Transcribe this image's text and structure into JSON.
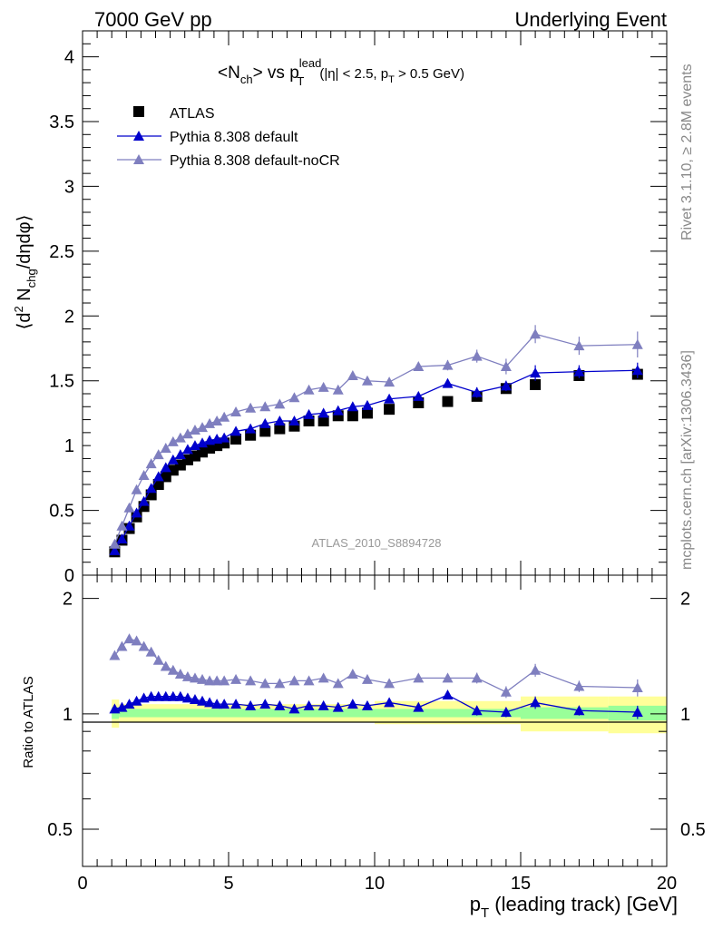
{
  "header": {
    "left": "7000 GeV pp",
    "right": "Underlying Event"
  },
  "side_text": {
    "rivet": "Rivet 3.1.10, ≥ 2.8M events",
    "mcplots": "mcplots.cern.ch [arXiv:1306.3436]"
  },
  "watermark": "ATLAS_2010_S8894728",
  "plot_title": {
    "main_a": "<N",
    "main_a_sub": "ch",
    "main_b": "> vs p",
    "main_b_sup": "lead",
    "main_b_sub": "T",
    "cuts_a": "(|η| < 2.5, p",
    "cuts_sub": "T",
    "cuts_b": " > 0.5 GeV)"
  },
  "labels": {
    "ylabel_a": "⟨d",
    "ylabel_sup": "2",
    "ylabel_b": " N",
    "ylabel_sub": "chg",
    "ylabel_c": "/dηdφ⟩",
    "ratio_ylabel": "Ratio to ATLAS",
    "xlabel_a": "p",
    "xlabel_sub": "T",
    "xlabel_b": " (leading track) [GeV]"
  },
  "legend": [
    {
      "label": "ATLAS",
      "color": "#000000",
      "marker": "square"
    },
    {
      "label": "Pythia 8.308 default",
      "color": "#0000cc",
      "marker": "triangle"
    },
    {
      "label": "Pythia 8.308 default-noCR",
      "color": "#7f7fbf",
      "marker": "triangle"
    }
  ],
  "chart_data": [
    {
      "type": "scatter",
      "panel": "main",
      "xlim": [
        0,
        20
      ],
      "ylim": [
        0,
        4.2
      ],
      "yticks": [
        "0",
        "0.5",
        "1",
        "1.5",
        "2",
        "2.5",
        "3",
        "3.5",
        "4"
      ],
      "x": [
        1.1,
        1.35,
        1.6,
        1.85,
        2.1,
        2.35,
        2.6,
        2.85,
        3.1,
        3.35,
        3.6,
        3.85,
        4.1,
        4.35,
        4.6,
        4.85,
        5.25,
        5.75,
        6.25,
        6.75,
        7.25,
        7.75,
        8.25,
        8.75,
        9.25,
        9.75,
        10.5,
        11.5,
        12.5,
        13.5,
        14.5,
        15.5,
        17,
        19
      ],
      "series": [
        {
          "name": "ATLAS",
          "color": "#000000",
          "marker": "square",
          "values": [
            0.18,
            0.27,
            0.36,
            0.45,
            0.53,
            0.62,
            0.7,
            0.76,
            0.81,
            0.85,
            0.89,
            0.92,
            0.95,
            0.98,
            1.0,
            1.02,
            1.05,
            1.08,
            1.11,
            1.13,
            1.15,
            1.19,
            1.19,
            1.23,
            1.23,
            1.25,
            1.28,
            1.33,
            1.34,
            1.38,
            1.44,
            1.47,
            1.54,
            1.55
          ],
          "errors": [
            0.01,
            0.01,
            0.01,
            0.01,
            0.01,
            0.01,
            0.01,
            0.01,
            0.01,
            0.01,
            0.01,
            0.01,
            0.01,
            0.01,
            0.01,
            0.01,
            0.01,
            0.01,
            0.01,
            0.01,
            0.01,
            0.01,
            0.01,
            0.01,
            0.01,
            0.01,
            0.01,
            0.02,
            0.02,
            0.02,
            0.02,
            0.02,
            0.03,
            0.03
          ]
        },
        {
          "name": "Pythia 8.308 default",
          "color": "#0000cc",
          "marker": "triangle",
          "values": [
            0.19,
            0.28,
            0.38,
            0.48,
            0.57,
            0.67,
            0.76,
            0.83,
            0.89,
            0.93,
            0.97,
            1.0,
            1.02,
            1.04,
            1.05,
            1.06,
            1.11,
            1.13,
            1.17,
            1.19,
            1.19,
            1.24,
            1.25,
            1.27,
            1.3,
            1.31,
            1.36,
            1.38,
            1.48,
            1.41,
            1.46,
            1.56,
            1.57,
            1.58
          ],
          "errors": [
            0.01,
            0.01,
            0.01,
            0.01,
            0.01,
            0.01,
            0.01,
            0.01,
            0.01,
            0.01,
            0.01,
            0.01,
            0.01,
            0.01,
            0.01,
            0.01,
            0.01,
            0.01,
            0.01,
            0.01,
            0.01,
            0.02,
            0.02,
            0.02,
            0.02,
            0.02,
            0.02,
            0.03,
            0.03,
            0.04,
            0.04,
            0.06,
            0.05,
            0.06
          ]
        },
        {
          "name": "Pythia 8.308 default-noCR",
          "color": "#7f7fbf",
          "marker": "triangle",
          "values": [
            0.24,
            0.38,
            0.52,
            0.66,
            0.77,
            0.86,
            0.93,
            0.98,
            1.03,
            1.06,
            1.09,
            1.12,
            1.14,
            1.17,
            1.19,
            1.22,
            1.26,
            1.29,
            1.3,
            1.32,
            1.37,
            1.43,
            1.45,
            1.43,
            1.54,
            1.5,
            1.49,
            1.61,
            1.62,
            1.69,
            1.61,
            1.86,
            1.77,
            1.78
          ],
          "errors": [
            0.01,
            0.01,
            0.01,
            0.01,
            0.01,
            0.01,
            0.01,
            0.01,
            0.01,
            0.01,
            0.01,
            0.01,
            0.01,
            0.01,
            0.01,
            0.01,
            0.01,
            0.01,
            0.01,
            0.01,
            0.02,
            0.02,
            0.02,
            0.02,
            0.02,
            0.02,
            0.03,
            0.03,
            0.04,
            0.05,
            0.06,
            0.07,
            0.07,
            0.1
          ]
        }
      ]
    },
    {
      "type": "scatter",
      "panel": "ratio",
      "xlim": [
        0,
        20
      ],
      "ylim": [
        0.4,
        2.3
      ],
      "y_scale": "log",
      "yticks": [
        "0.5",
        "1",
        "2"
      ],
      "xticks": [
        "0",
        "5",
        "10",
        "15",
        "20"
      ],
      "x": [
        1.1,
        1.35,
        1.6,
        1.85,
        2.1,
        2.35,
        2.6,
        2.85,
        3.1,
        3.35,
        3.6,
        3.85,
        4.1,
        4.35,
        4.6,
        4.85,
        5.25,
        5.75,
        6.25,
        6.75,
        7.25,
        7.75,
        8.25,
        8.75,
        9.25,
        9.75,
        10.5,
        11.5,
        12.5,
        13.5,
        14.5,
        15.5,
        17,
        19
      ],
      "bands": {
        "bins": [
          [
            1,
            1.25
          ],
          [
            1.25,
            2.5
          ],
          [
            2.5,
            5
          ],
          [
            5,
            10
          ],
          [
            10,
            15
          ],
          [
            15,
            18
          ],
          [
            18,
            20
          ]
        ],
        "stat": [
          [
            0.97,
            1.04
          ],
          [
            0.98,
            1.03
          ],
          [
            0.98,
            1.03
          ],
          [
            0.98,
            1.03
          ],
          [
            0.98,
            1.03
          ],
          [
            0.97,
            1.04
          ],
          [
            0.96,
            1.05
          ]
        ],
        "total": [
          [
            0.92,
            1.09
          ],
          [
            0.95,
            1.06
          ],
          [
            0.95,
            1.06
          ],
          [
            0.95,
            1.06
          ],
          [
            0.94,
            1.08
          ],
          [
            0.9,
            1.11
          ],
          [
            0.89,
            1.11
          ]
        ],
        "stat_color": "#99ff99",
        "total_color": "#ffff99"
      },
      "series": [
        {
          "name": "Pythia 8.308 default",
          "color": "#0000cc",
          "marker": "triangle",
          "values": [
            1.03,
            1.04,
            1.06,
            1.08,
            1.1,
            1.11,
            1.11,
            1.11,
            1.11,
            1.11,
            1.1,
            1.09,
            1.08,
            1.07,
            1.06,
            1.06,
            1.06,
            1.05,
            1.06,
            1.05,
            1.03,
            1.05,
            1.05,
            1.04,
            1.06,
            1.05,
            1.07,
            1.04,
            1.12,
            1.02,
            1.01,
            1.07,
            1.02,
            1.01
          ],
          "errors": [
            0.01,
            0.01,
            0.01,
            0.01,
            0.01,
            0.01,
            0.01,
            0.01,
            0.01,
            0.01,
            0.01,
            0.01,
            0.01,
            0.01,
            0.01,
            0.01,
            0.01,
            0.01,
            0.01,
            0.01,
            0.01,
            0.01,
            0.01,
            0.01,
            0.01,
            0.01,
            0.02,
            0.02,
            0.02,
            0.03,
            0.03,
            0.04,
            0.03,
            0.04
          ]
        },
        {
          "name": "Pythia 8.308 default-noCR",
          "color": "#7f7fbf",
          "marker": "triangle",
          "values": [
            1.42,
            1.5,
            1.57,
            1.55,
            1.5,
            1.45,
            1.38,
            1.33,
            1.3,
            1.27,
            1.25,
            1.24,
            1.23,
            1.22,
            1.22,
            1.22,
            1.23,
            1.22,
            1.2,
            1.2,
            1.22,
            1.22,
            1.24,
            1.2,
            1.27,
            1.23,
            1.2,
            1.24,
            1.24,
            1.24,
            1.14,
            1.3,
            1.18,
            1.17
          ],
          "errors": [
            0.01,
            0.01,
            0.01,
            0.01,
            0.01,
            0.01,
            0.01,
            0.01,
            0.01,
            0.01,
            0.01,
            0.01,
            0.01,
            0.01,
            0.01,
            0.01,
            0.01,
            0.01,
            0.01,
            0.01,
            0.01,
            0.02,
            0.02,
            0.02,
            0.02,
            0.02,
            0.02,
            0.03,
            0.03,
            0.04,
            0.04,
            0.05,
            0.04,
            0.06
          ]
        }
      ]
    }
  ]
}
